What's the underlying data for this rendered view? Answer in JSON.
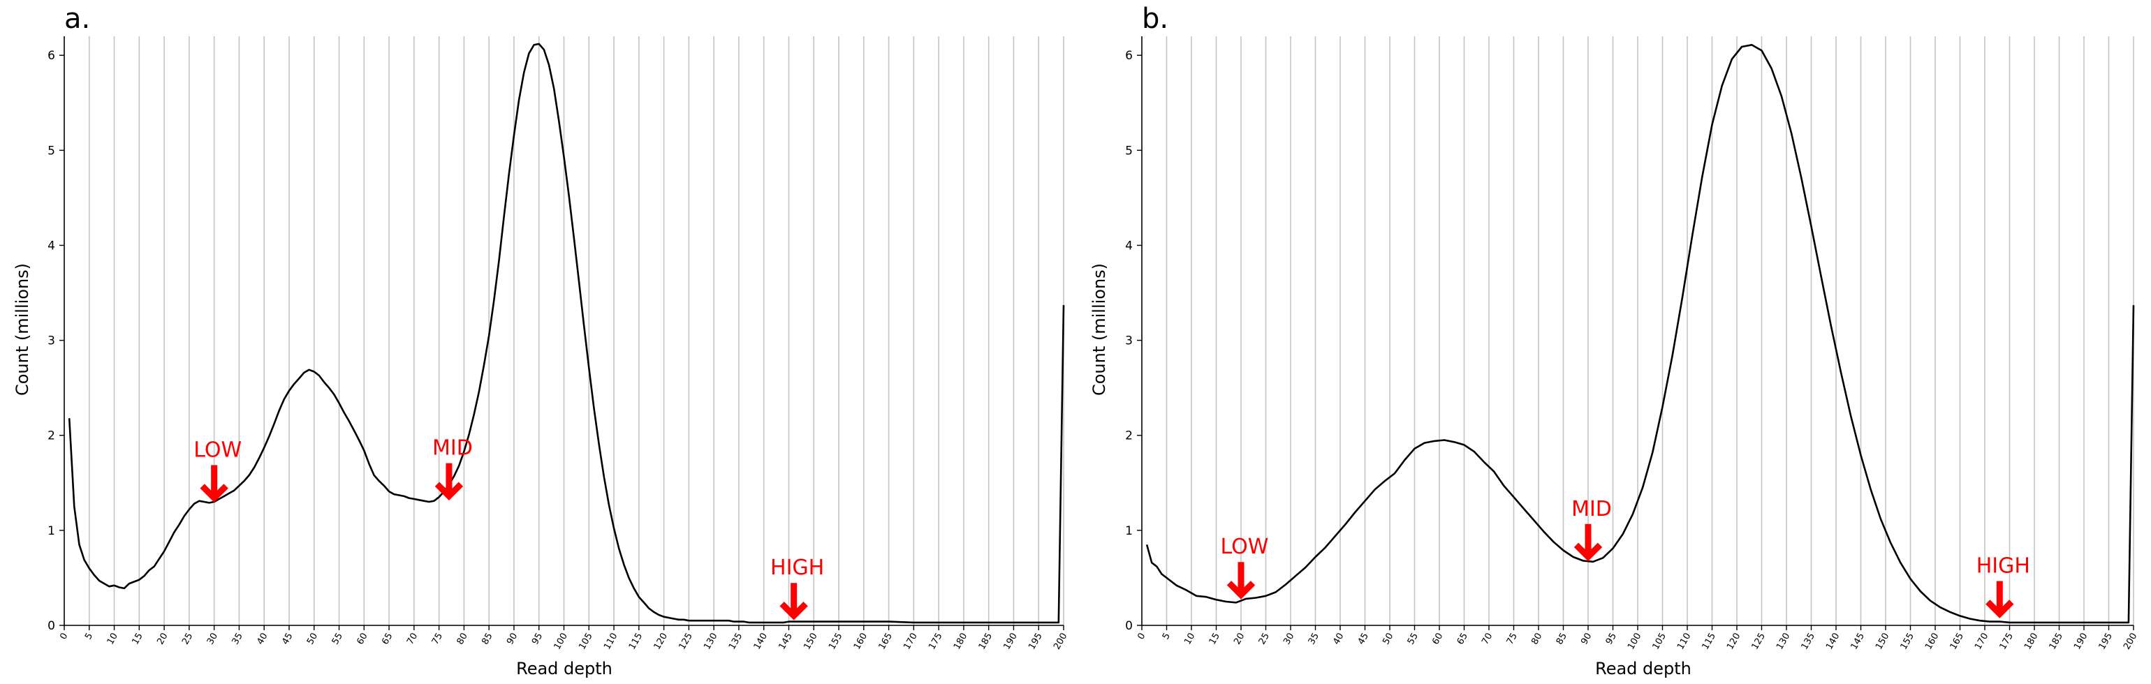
{
  "chart_data": [
    {
      "panel": "a.",
      "type": "line",
      "title": "",
      "xlabel": "Read depth",
      "ylabel": "Count (millions)",
      "xlim": [
        0,
        200
      ],
      "ylim": [
        0,
        6.2
      ],
      "yticks": [
        0,
        1,
        2,
        3,
        4,
        5,
        6
      ],
      "xticks": [
        0,
        5,
        10,
        15,
        20,
        25,
        30,
        35,
        40,
        45,
        50,
        55,
        60,
        65,
        70,
        75,
        80,
        85,
        90,
        95,
        100,
        105,
        110,
        115,
        120,
        125,
        130,
        135,
        140,
        145,
        150,
        155,
        160,
        165,
        170,
        175,
        180,
        185,
        190,
        195,
        200
      ],
      "grid": "vertical",
      "series": [
        {
          "x": [
            1,
            2,
            3,
            4,
            5,
            6,
            7,
            8,
            9,
            10,
            11,
            12,
            13,
            14,
            15,
            16,
            17,
            18,
            19,
            20,
            21,
            22,
            23,
            24,
            25,
            26,
            27,
            28,
            29,
            30,
            31,
            32,
            33,
            34,
            35,
            36,
            37,
            38,
            39,
            40,
            41,
            42,
            43,
            44,
            45,
            46,
            47,
            48,
            49,
            50,
            51,
            52,
            53,
            54,
            55,
            56,
            57,
            58,
            59,
            60,
            61,
            62,
            63,
            64,
            65,
            66,
            67,
            68,
            69,
            70,
            71,
            72,
            73,
            74,
            75,
            76,
            77,
            78,
            79,
            80,
            81,
            82,
            83,
            84,
            85,
            86,
            87,
            88,
            89,
            90,
            91,
            92,
            93,
            94,
            95,
            96,
            97,
            98,
            99,
            100,
            101,
            102,
            103,
            104,
            105,
            106,
            107,
            108,
            109,
            110,
            111,
            112,
            113,
            114,
            115,
            116,
            117,
            118,
            119,
            120,
            121,
            122,
            123,
            124,
            125,
            126,
            127,
            128,
            129,
            130,
            131,
            132,
            133,
            134,
            135,
            136,
            137,
            138,
            139,
            140,
            141,
            142,
            143,
            144,
            145,
            146,
            147,
            148,
            149,
            150,
            155,
            160,
            165,
            170,
            175,
            180,
            185,
            190,
            195,
            199,
            200
          ],
          "y": [
            2.18,
            1.25,
            0.85,
            0.69,
            0.6,
            0.53,
            0.47,
            0.44,
            0.41,
            0.42,
            0.4,
            0.39,
            0.44,
            0.46,
            0.48,
            0.52,
            0.58,
            0.62,
            0.7,
            0.78,
            0.88,
            0.98,
            1.06,
            1.15,
            1.22,
            1.28,
            1.31,
            1.3,
            1.29,
            1.3,
            1.33,
            1.36,
            1.39,
            1.42,
            1.47,
            1.52,
            1.58,
            1.66,
            1.76,
            1.87,
            1.99,
            2.12,
            2.26,
            2.38,
            2.47,
            2.54,
            2.6,
            2.66,
            2.69,
            2.67,
            2.63,
            2.56,
            2.5,
            2.43,
            2.34,
            2.24,
            2.15,
            2.05,
            1.95,
            1.84,
            1.7,
            1.58,
            1.52,
            1.47,
            1.41,
            1.38,
            1.37,
            1.36,
            1.34,
            1.33,
            1.32,
            1.31,
            1.3,
            1.31,
            1.35,
            1.41,
            1.48,
            1.57,
            1.68,
            1.83,
            2.01,
            2.22,
            2.46,
            2.74,
            3.05,
            3.42,
            3.84,
            4.3,
            4.75,
            5.16,
            5.53,
            5.82,
            6.02,
            6.11,
            6.12,
            6.06,
            5.9,
            5.65,
            5.31,
            4.93,
            4.52,
            4.08,
            3.62,
            3.16,
            2.71,
            2.29,
            1.91,
            1.57,
            1.27,
            1.02,
            0.81,
            0.64,
            0.5,
            0.39,
            0.3,
            0.24,
            0.18,
            0.14,
            0.11,
            0.09,
            0.08,
            0.07,
            0.06,
            0.06,
            0.05,
            0.05,
            0.05,
            0.05,
            0.05,
            0.05,
            0.05,
            0.05,
            0.05,
            0.04,
            0.04,
            0.04,
            0.03,
            0.03,
            0.03,
            0.03,
            0.03,
            0.03,
            0.03,
            0.03,
            0.04,
            0.04,
            0.04,
            0.04,
            0.04,
            0.04,
            0.04,
            0.04,
            0.04,
            0.03,
            0.03,
            0.03,
            0.03,
            0.03,
            0.03,
            0.03,
            3.37
          ]
        }
      ],
      "annotations": [
        {
          "label": "LOW",
          "x": 30,
          "y": 1.29
        },
        {
          "label": "MID",
          "x": 77,
          "y": 1.31
        },
        {
          "label": "HIGH",
          "x": 146,
          "y": 0.05
        }
      ]
    },
    {
      "panel": "b.",
      "type": "line",
      "title": "",
      "xlabel": "Read depth",
      "ylabel": "Count (millions)",
      "xlim": [
        0,
        200
      ],
      "ylim": [
        0,
        6.2
      ],
      "yticks": [
        0,
        1,
        2,
        3,
        4,
        5,
        6
      ],
      "xticks": [
        0,
        5,
        10,
        15,
        20,
        25,
        30,
        35,
        40,
        45,
        50,
        55,
        60,
        65,
        70,
        75,
        80,
        85,
        90,
        95,
        100,
        105,
        110,
        115,
        120,
        125,
        130,
        135,
        140,
        145,
        150,
        155,
        160,
        165,
        170,
        175,
        180,
        185,
        190,
        195,
        200
      ],
      "grid": "vertical",
      "series": [
        {
          "x": [
            1,
            2,
            3,
            4,
            5,
            7,
            9,
            11,
            13,
            15,
            17,
            19,
            21,
            23,
            25,
            27,
            29,
            31,
            33,
            35,
            37,
            39,
            41,
            43,
            45,
            47,
            49,
            51,
            53,
            55,
            57,
            59,
            61,
            63,
            65,
            67,
            69,
            71,
            73,
            75,
            77,
            79,
            81,
            83,
            85,
            87,
            89,
            91,
            93,
            95,
            97,
            99,
            101,
            103,
            105,
            107,
            109,
            111,
            113,
            115,
            117,
            119,
            121,
            123,
            125,
            127,
            129,
            131,
            133,
            135,
            137,
            139,
            141,
            143,
            145,
            147,
            149,
            151,
            153,
            155,
            157,
            159,
            161,
            163,
            165,
            167,
            169,
            171,
            173,
            175,
            178,
            181,
            185,
            190,
            195,
            199,
            200
          ],
          "y": [
            0.85,
            0.66,
            0.62,
            0.54,
            0.5,
            0.42,
            0.37,
            0.31,
            0.3,
            0.27,
            0.25,
            0.24,
            0.28,
            0.29,
            0.31,
            0.35,
            0.43,
            0.52,
            0.61,
            0.72,
            0.82,
            0.94,
            1.06,
            1.19,
            1.31,
            1.43,
            1.52,
            1.6,
            1.74,
            1.86,
            1.92,
            1.94,
            1.95,
            1.93,
            1.9,
            1.83,
            1.72,
            1.62,
            1.47,
            1.35,
            1.23,
            1.11,
            0.99,
            0.88,
            0.79,
            0.72,
            0.68,
            0.67,
            0.71,
            0.81,
            0.96,
            1.17,
            1.45,
            1.82,
            2.3,
            2.84,
            3.45,
            4.1,
            4.72,
            5.27,
            5.68,
            5.96,
            6.09,
            6.11,
            6.05,
            5.86,
            5.57,
            5.18,
            4.71,
            4.2,
            3.67,
            3.15,
            2.66,
            2.2,
            1.79,
            1.43,
            1.12,
            0.87,
            0.66,
            0.49,
            0.36,
            0.26,
            0.19,
            0.14,
            0.1,
            0.07,
            0.05,
            0.04,
            0.04,
            0.03,
            0.03,
            0.03,
            0.03,
            0.03,
            0.03,
            0.03,
            3.37
          ]
        }
      ],
      "annotations": [
        {
          "label": "LOW",
          "x": 20,
          "y": 0.27
        },
        {
          "label": "MID",
          "x": 90,
          "y": 0.67
        },
        {
          "label": "HIGH",
          "x": 173,
          "y": 0.07
        }
      ]
    }
  ]
}
